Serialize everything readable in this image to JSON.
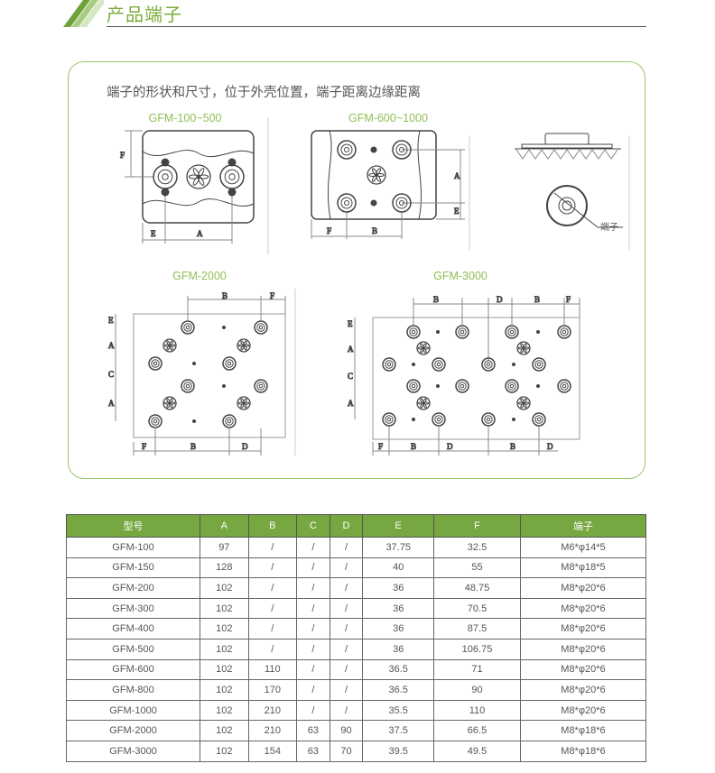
{
  "header": {
    "title": "产品端子"
  },
  "intro": "端子的形状和尺寸，位于外壳位置，端子距离边缘距离",
  "diagrams": {
    "d1": {
      "title": "GFM-100~500",
      "labels": [
        "F",
        "E",
        "A"
      ]
    },
    "d2": {
      "title": "GFM-600~1000",
      "labels": [
        "A",
        "E",
        "F",
        "B"
      ]
    },
    "d3": {
      "terminal_label": "端子"
    },
    "d4": {
      "title": "GFM-2000",
      "labels": [
        "B",
        "F",
        "E",
        "A",
        "C",
        "A",
        "F",
        "B",
        "D"
      ]
    },
    "d5": {
      "title": "GFM-3000",
      "labels": [
        "B",
        "D",
        "B",
        "F",
        "E",
        "A",
        "C",
        "A",
        "F",
        "B",
        "D",
        "B",
        "D"
      ]
    }
  },
  "table": {
    "headers": [
      "型号",
      "A",
      "B",
      "C",
      "D",
      "E",
      "F",
      "端子"
    ],
    "rows": [
      [
        "GFM-100",
        "97",
        "/",
        "/",
        "/",
        "37.75",
        "32.5",
        "M6*φ14*5"
      ],
      [
        "GFM-150",
        "128",
        "/",
        "/",
        "/",
        "40",
        "55",
        "M8*φ18*5"
      ],
      [
        "GFM-200",
        "102",
        "/",
        "/",
        "/",
        "36",
        "48.75",
        "M8*φ20*6"
      ],
      [
        "GFM-300",
        "102",
        "/",
        "/",
        "/",
        "36",
        "70.5",
        "M8*φ20*6"
      ],
      [
        "GFM-400",
        "102",
        "/",
        "/",
        "/",
        "36",
        "87.5",
        "M8*φ20*6"
      ],
      [
        "GFM-500",
        "102",
        "/",
        "/",
        "/",
        "36",
        "106.75",
        "M8*φ20*6"
      ],
      [
        "GFM-600",
        "102",
        "110",
        "/",
        "/",
        "36.5",
        "71",
        "M8*φ20*6"
      ],
      [
        "GFM-800",
        "102",
        "170",
        "/",
        "/",
        "36.5",
        "90",
        "M8*φ20*6"
      ],
      [
        "GFM-1000",
        "102",
        "210",
        "/",
        "/",
        "35.5",
        "110",
        "M8*φ20*6"
      ],
      [
        "GFM-2000",
        "102",
        "210",
        "63",
        "90",
        "37.5",
        "66.5",
        "M8*φ18*6"
      ],
      [
        "GFM-3000",
        "102",
        "154",
        "63",
        "70",
        "39.5",
        "49.5",
        "M8*φ18*6"
      ]
    ]
  },
  "colors": {
    "accent": "#7aac3b",
    "header_bg": "#76a741",
    "box_border": "#9cc66b"
  }
}
